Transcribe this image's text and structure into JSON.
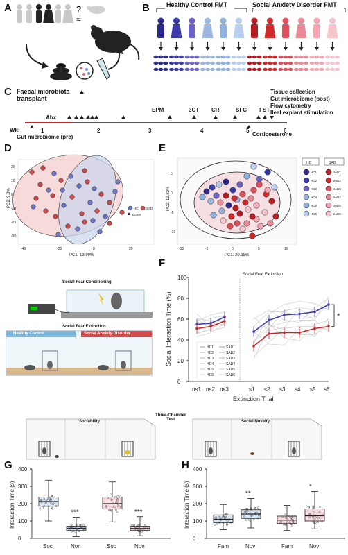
{
  "panel_letters": {
    "A": "A",
    "B": "B",
    "C": "C",
    "D": "D",
    "E": "E",
    "F": "F",
    "G": "G",
    "H": "H"
  },
  "panel_a": {
    "question": "?",
    "approx": "≈"
  },
  "panel_b": {
    "group_hc": "Healthy Control FMT",
    "group_sad": "Social Anxiety Disorder FMT",
    "colors_hc": [
      "#2b2a8a",
      "#3a3aa8",
      "#6b63c6",
      "#9cb6e0",
      "#8fb3df",
      "#b8cfee"
    ],
    "colors_sad": [
      "#b51d22",
      "#d12a2a",
      "#e0505b",
      "#ea8a96",
      "#f2a7b3",
      "#f6c4cd"
    ]
  },
  "panel_c": {
    "fmt_label": "Faecal microbiota\ntransplant",
    "abx": "Abx",
    "events": [
      "EPM",
      "3CT",
      "CR",
      "SFC",
      "FST"
    ],
    "week_prefix": "Wk:",
    "weeks": [
      "1",
      "2",
      "3",
      "4",
      "5",
      "6"
    ],
    "gut_pre": "Gut microbiome (pre)",
    "corticosterone": "Corticosterone",
    "right_list": [
      "Tissue collection",
      "Gut microbiome (post)",
      "Flow cytometry",
      "Ileal explant stimulation"
    ]
  },
  "panel_d": {
    "xlabel": "PC1: 13.99%",
    "ylabel": "PC2: 9.8%",
    "legend": [
      "HC",
      "SAD",
      "Donor"
    ],
    "xticks": [
      "-40",
      "-20",
      "0",
      "20"
    ],
    "yticks": [
      "20",
      "10",
      "0",
      "-10",
      "-20",
      "-30"
    ]
  },
  "panel_e": {
    "xlabel": "PC1: 20.35%",
    "ylabel": "PC2: 12.83%",
    "xticks": [
      "-10",
      "-5",
      "0",
      "5",
      "10"
    ],
    "yticks": [
      "5",
      "0",
      "-5",
      "-10"
    ],
    "hc_title": "HC",
    "sad_title": "SAD",
    "hc_items": [
      "HC1",
      "HC2",
      "HC3",
      "HC4",
      "HC5",
      "HC6"
    ],
    "sad_items": [
      "SAD1",
      "SAD2",
      "SAD3",
      "SAD4",
      "SAD5",
      "SAD6"
    ]
  },
  "panel_sfc": {
    "title": "Social Fear Conditioning",
    "ext_title": "Social Fear Extinction",
    "hc": "Healthy Control",
    "sad": "Social Anxiety Disorder"
  },
  "chart_data": [
    {
      "type": "line",
      "title": "Social Fear Extinction",
      "xlabel": "Extinction Trial",
      "ylabel": "Social Interaction Time (%)",
      "ylim": [
        0,
        100
      ],
      "yticks": [
        "0",
        "20",
        "40",
        "60",
        "80",
        "100"
      ],
      "categories": [
        "ns1",
        "ns2",
        "ns3",
        "s1",
        "s2",
        "s3",
        "s4",
        "s5",
        "s6"
      ],
      "series": [
        {
          "name": "HC",
          "values": [
            55,
            56,
            62,
            48,
            59,
            64,
            65,
            67,
            74
          ],
          "color": "#3b3bb0"
        },
        {
          "name": "SAD",
          "values": [
            51,
            53,
            58,
            34,
            46,
            47,
            47,
            51,
            53
          ],
          "color": "#c0282d"
        }
      ],
      "legend_left": [
        "HC1",
        "HC2",
        "HC3",
        "HC4",
        "HC5",
        "HC6"
      ],
      "legend_right": [
        "SAD1",
        "SAD2",
        "SAD3",
        "SAD4",
        "SAD5",
        "SAD6"
      ],
      "significance": "*"
    },
    {
      "type": "box",
      "title": "Sociability",
      "ylabel": "Interaction Time (s)",
      "ylim": [
        0,
        400
      ],
      "yticks": [
        "0",
        "100",
        "200",
        "300",
        "400"
      ],
      "categories": [
        "Soc",
        "Non",
        "Soc",
        "Non"
      ],
      "groups": [
        "HC",
        "HC",
        "SAD",
        "SAD"
      ],
      "box": [
        {
          "min": 100,
          "q1": 185,
          "median": 212,
          "q3": 238,
          "max": 335
        },
        {
          "min": 10,
          "q1": 45,
          "median": 58,
          "q3": 70,
          "max": 122
        },
        {
          "min": 95,
          "q1": 170,
          "median": 200,
          "q3": 238,
          "max": 325
        },
        {
          "min": 15,
          "q1": 45,
          "median": 57,
          "q3": 70,
          "max": 125
        }
      ],
      "significance": [
        "",
        "***",
        "",
        "***"
      ]
    },
    {
      "type": "box",
      "title": "Social Novelty",
      "ylabel": "Interaction Time (s)",
      "ylim": [
        0,
        400
      ],
      "yticks": [
        "0",
        "100",
        "200",
        "300",
        "400"
      ],
      "categories": [
        "Fam",
        "Nov",
        "Fam",
        "Nov"
      ],
      "groups": [
        "HC",
        "HC",
        "SAD",
        "SAD"
      ],
      "box": [
        {
          "min": 50,
          "q1": 90,
          "median": 110,
          "q3": 135,
          "max": 195
        },
        {
          "min": 60,
          "q1": 115,
          "median": 140,
          "q3": 165,
          "max": 230
        },
        {
          "min": 45,
          "q1": 85,
          "median": 105,
          "q3": 128,
          "max": 190
        },
        {
          "min": 55,
          "q1": 100,
          "median": 130,
          "q3": 170,
          "max": 270
        }
      ],
      "significance": [
        "",
        "**",
        "",
        "*"
      ]
    }
  ],
  "three_chamber": {
    "title": "Three-Chamber\nTest",
    "left": "Sociability",
    "right": "Social Novelty"
  }
}
